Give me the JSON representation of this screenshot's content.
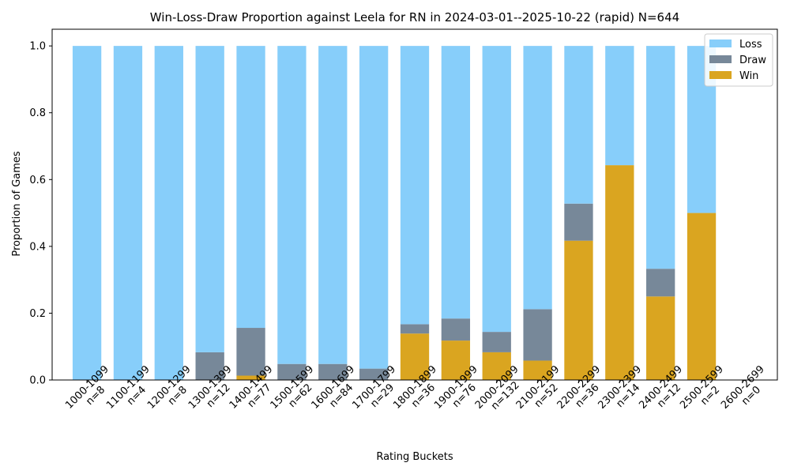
{
  "chart_data": {
    "type": "bar",
    "stacked": true,
    "title": "Win-Loss-Draw Proportion against Leela for RN in 2024-03-01--2025-10-22 (rapid) N=644",
    "xlabel": "Rating Buckets",
    "ylabel": "Proportion of Games",
    "ylim": [
      0,
      1.05
    ],
    "yticks": [
      "0.0",
      "0.2",
      "0.4",
      "0.6",
      "0.8",
      "1.0"
    ],
    "categories": [
      "1000-1099",
      "1100-1199",
      "1200-1299",
      "1300-1399",
      "1400-1499",
      "1500-1599",
      "1600-1699",
      "1700-1799",
      "1800-1899",
      "1900-1999",
      "2000-2099",
      "2100-2199",
      "2200-2299",
      "2300-2399",
      "2400-2499",
      "2500-2599",
      "2600-2699"
    ],
    "counts": [
      "n=8",
      "n=4",
      "n=8",
      "n=12",
      "n=77",
      "n=62",
      "n=84",
      "n=29",
      "n=36",
      "n=76",
      "n=132",
      "n=52",
      "n=36",
      "n=14",
      "n=12",
      "n=2",
      "n=0"
    ],
    "legend_position": "top-right",
    "series": [
      {
        "name": "Win",
        "color": "#DAA520",
        "values": [
          0,
          0,
          0,
          0,
          0.013,
          0,
          0,
          0,
          0.139,
          0.118,
          0.083,
          0.058,
          0.417,
          0.643,
          0.25,
          0.5,
          0
        ]
      },
      {
        "name": "Draw",
        "color": "#778899",
        "values": [
          0,
          0,
          0,
          0.083,
          0.143,
          0.048,
          0.048,
          0.034,
          0.028,
          0.066,
          0.061,
          0.154,
          0.111,
          0,
          0.083,
          0,
          0
        ]
      },
      {
        "name": "Loss",
        "color": "#87CEFA",
        "values": [
          1,
          1,
          1,
          0.917,
          0.844,
          0.952,
          0.952,
          0.966,
          0.833,
          0.816,
          0.856,
          0.788,
          0.472,
          0.357,
          0.667,
          0.5,
          0
        ]
      }
    ],
    "legend_order": [
      "Loss",
      "Draw",
      "Win"
    ]
  }
}
